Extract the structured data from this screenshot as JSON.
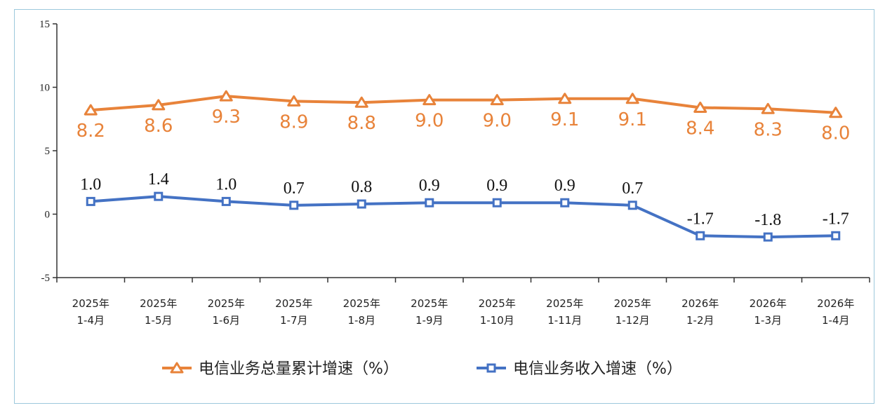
{
  "chart_data": {
    "type": "line",
    "categories": [
      [
        "2025年",
        "1-4月"
      ],
      [
        "2025年",
        "1-5月"
      ],
      [
        "2025年",
        "1-6月"
      ],
      [
        "2025年",
        "1-7月"
      ],
      [
        "2025年",
        "1-8月"
      ],
      [
        "2025年",
        "1-9月"
      ],
      [
        "2025年",
        "1-10月"
      ],
      [
        "2025年",
        "1-11月"
      ],
      [
        "2025年",
        "1-12月"
      ],
      [
        "2026年",
        "1-2月"
      ],
      [
        "2026年",
        "1-3月"
      ],
      [
        "2026年",
        "1-4月"
      ]
    ],
    "ylim": [
      -5,
      15
    ],
    "yticks": [
      15,
      10,
      5,
      0,
      -5
    ],
    "ytick_labels": [
      "15",
      "10",
      "5",
      "0",
      "-5"
    ],
    "grid": false,
    "legend_position": "bottom",
    "series": [
      {
        "name": "电信业务总量累计增速（%）",
        "color": "#e8833a",
        "marker": "triangle",
        "values": [
          8.2,
          8.6,
          9.3,
          8.9,
          8.8,
          9.0,
          9.0,
          9.1,
          9.1,
          8.4,
          8.3,
          8.0
        ],
        "labels": [
          "8.2",
          "8.6",
          "9.3",
          "8.9",
          "8.8",
          "9.0",
          "9.0",
          "9.1",
          "9.1",
          "8.4",
          "8.3",
          "8.0"
        ]
      },
      {
        "name": "电信业务收入增速（%）",
        "color": "#4472c4",
        "marker": "square",
        "values": [
          1.0,
          1.4,
          1.0,
          0.7,
          0.8,
          0.9,
          0.9,
          0.9,
          0.7,
          -1.7,
          -1.8,
          -1.7
        ],
        "labels": [
          "1.0",
          "1.4",
          "1.0",
          "0.7",
          "0.8",
          "0.9",
          "0.9",
          "0.9",
          "0.7",
          "-1.7",
          "-1.8",
          "-1.7"
        ]
      }
    ]
  }
}
